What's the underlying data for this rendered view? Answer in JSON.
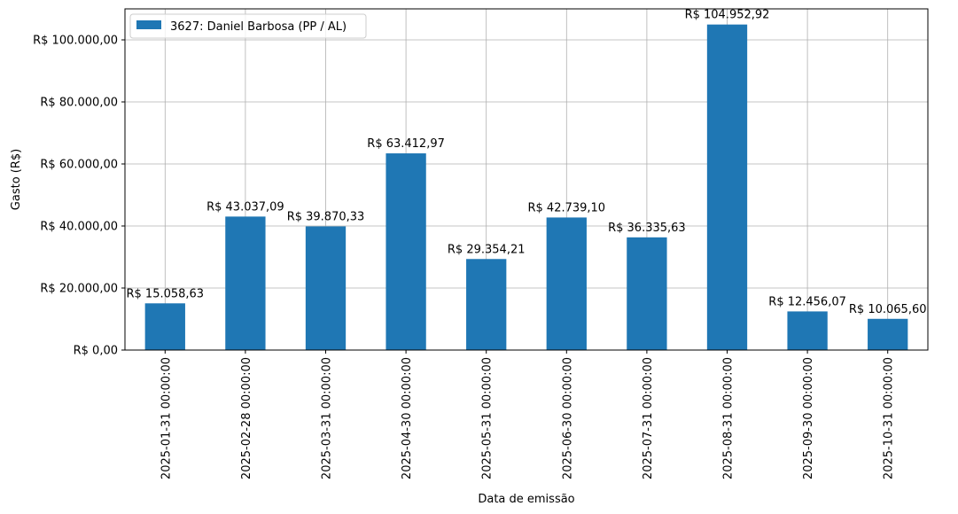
{
  "chart_data": {
    "type": "bar",
    "title": "",
    "xlabel": "Data de emissão",
    "ylabel": "Gasto (R$)",
    "ylim": [
      0,
      110000
    ],
    "grid": true,
    "legend_position": "top-left",
    "bar_color": "#1f77b4",
    "categories": [
      "2025-01-31 00:00:00",
      "2025-02-28 00:00:00",
      "2025-03-31 00:00:00",
      "2025-04-30 00:00:00",
      "2025-05-31 00:00:00",
      "2025-06-30 00:00:00",
      "2025-07-31 00:00:00",
      "2025-08-31 00:00:00",
      "2025-09-30 00:00:00",
      "2025-10-31 00:00:00"
    ],
    "series": [
      {
        "name": "3627: Daniel Barbosa (PP / AL)",
        "values": [
          15058.63,
          43037.09,
          39870.33,
          63412.97,
          29354.21,
          42739.1,
          36335.63,
          104952.92,
          12456.07,
          10065.6
        ],
        "labels": [
          "R$ 15.058,63",
          "R$ 43.037,09",
          "R$ 39.870,33",
          "R$ 63.412,97",
          "R$ 29.354,21",
          "R$ 42.739,10",
          "R$ 36.335,63",
          "R$ 104.952,92",
          "R$ 12.456,07",
          "R$ 10.065,60"
        ]
      }
    ],
    "yticks": [
      0,
      20000,
      40000,
      60000,
      80000,
      100000
    ],
    "ytick_labels": [
      "R$ 0,00",
      "R$ 20.000,00",
      "R$ 40.000,00",
      "R$ 60.000,00",
      "R$ 80.000,00",
      "R$ 100.000,00"
    ]
  }
}
